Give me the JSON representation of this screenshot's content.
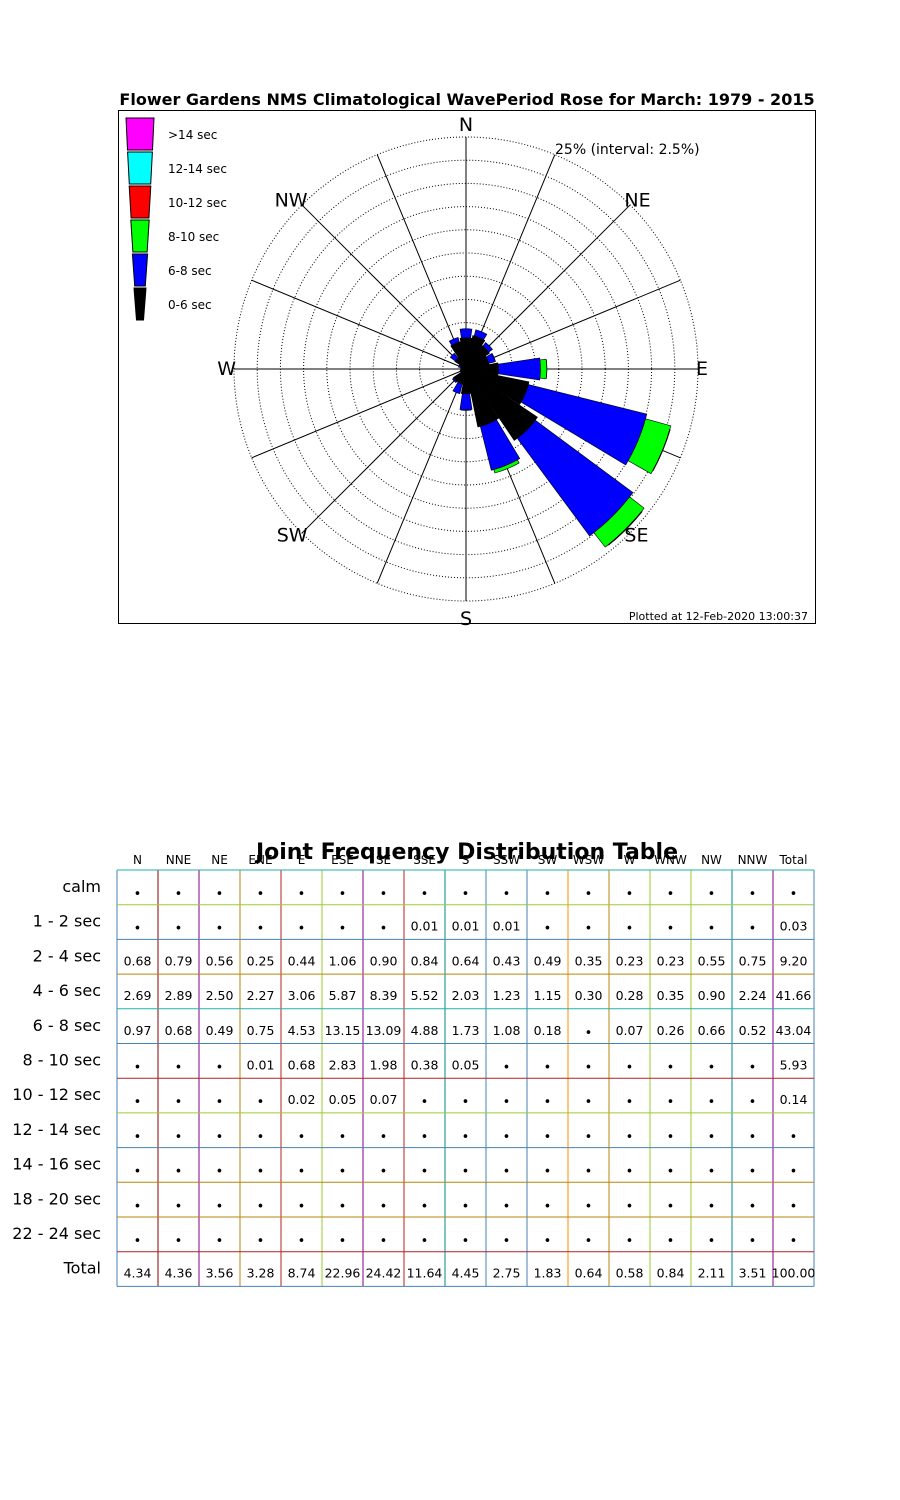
{
  "chart_data": [
    {
      "type": "rose",
      "title": "Flower Gardens NMS Climatological WavePeriod Rose for March: 1979 - 2015",
      "scale_label": "25% (interval: 2.5%)",
      "max_percent": 25,
      "ring_interval": 2.5,
      "footer": "Plotted at 12-Feb-2020 13:00:37",
      "compass_labels": [
        "N",
        "NE",
        "E",
        "SE",
        "S",
        "SW",
        "W",
        "NW"
      ],
      "legend": [
        {
          "label": ">14 sec",
          "color": "#ff00ff"
        },
        {
          "label": "12-14 sec",
          "color": "#00ffff"
        },
        {
          "label": "10-12 sec",
          "color": "#ff0000"
        },
        {
          "label": "8-10 sec",
          "color": "#00ff00"
        },
        {
          "label": "6-8 sec",
          "color": "#0000ff"
        },
        {
          "label": "0-6 sec",
          "color": "#000000"
        }
      ],
      "directions": [
        "N",
        "NNE",
        "NE",
        "ENE",
        "E",
        "ESE",
        "SE",
        "SSE",
        "S",
        "SSW",
        "SW",
        "WSW",
        "W",
        "WNW",
        "NW",
        "NNW"
      ],
      "series": [
        {
          "name": "0-6 sec",
          "values": [
            3.37,
            3.68,
            3.06,
            2.52,
            3.5,
            6.93,
            9.29,
            6.37,
            2.68,
            1.67,
            1.64,
            0.65,
            0.51,
            0.58,
            1.45,
            2.99
          ]
        },
        {
          "name": "6-8 sec",
          "values": [
            0.97,
            0.68,
            0.49,
            0.75,
            4.53,
            13.15,
            13.09,
            4.88,
            1.73,
            1.08,
            0.18,
            0,
            0.07,
            0.26,
            0.66,
            0.52
          ]
        },
        {
          "name": "8-10 sec",
          "values": [
            0,
            0,
            0,
            0.01,
            0.68,
            2.83,
            1.98,
            0.38,
            0.05,
            0,
            0,
            0,
            0,
            0,
            0,
            0
          ]
        },
        {
          "name": "10-12 sec",
          "values": [
            0,
            0,
            0,
            0,
            0.02,
            0.05,
            0.07,
            0,
            0,
            0,
            0,
            0,
            0,
            0,
            0,
            0
          ]
        }
      ]
    },
    {
      "type": "table",
      "title": "Joint Frequency Distribution Table",
      "columns": [
        "N",
        "NNE",
        "NE",
        "ENE",
        "E",
        "ESE",
        "SE",
        "SSE",
        "S",
        "SSW",
        "SW",
        "WSW",
        "W",
        "WNW",
        "NW",
        "NNW",
        "Total"
      ],
      "rows": [
        {
          "label": "calm",
          "cells": [
            "•",
            "•",
            "•",
            "•",
            "•",
            "•",
            "•",
            "•",
            "•",
            "•",
            "•",
            "•",
            "•",
            "•",
            "•",
            "•",
            "•"
          ]
        },
        {
          "label": "1 - 2  sec",
          "cells": [
            "•",
            "•",
            "•",
            "•",
            "•",
            "•",
            "•",
            "0.01",
            "0.01",
            "0.01",
            "•",
            "•",
            "•",
            "•",
            "•",
            "•",
            "0.03"
          ]
        },
        {
          "label": "2 - 4  sec",
          "cells": [
            "0.68",
            "0.79",
            "0.56",
            "0.25",
            "0.44",
            "1.06",
            "0.90",
            "0.84",
            "0.64",
            "0.43",
            "0.49",
            "0.35",
            "0.23",
            "0.23",
            "0.55",
            "0.75",
            "9.20"
          ]
        },
        {
          "label": "4 - 6  sec",
          "cells": [
            "2.69",
            "2.89",
            "2.50",
            "2.27",
            "3.06",
            "5.87",
            "8.39",
            "5.52",
            "2.03",
            "1.23",
            "1.15",
            "0.30",
            "0.28",
            "0.35",
            "0.90",
            "2.24",
            "41.66"
          ]
        },
        {
          "label": "6 - 8  sec",
          "cells": [
            "0.97",
            "0.68",
            "0.49",
            "0.75",
            "4.53",
            "13.15",
            "13.09",
            "4.88",
            "1.73",
            "1.08",
            "0.18",
            "•",
            "0.07",
            "0.26",
            "0.66",
            "0.52",
            "43.04"
          ]
        },
        {
          "label": "8 - 10 sec",
          "cells": [
            "•",
            "•",
            "•",
            "0.01",
            "0.68",
            "2.83",
            "1.98",
            "0.38",
            "0.05",
            "•",
            "•",
            "•",
            "•",
            "•",
            "•",
            "•",
            "5.93"
          ]
        },
        {
          "label": "10 - 12 sec",
          "cells": [
            "•",
            "•",
            "•",
            "•",
            "0.02",
            "0.05",
            "0.07",
            "•",
            "•",
            "•",
            "•",
            "•",
            "•",
            "•",
            "•",
            "•",
            "0.14"
          ]
        },
        {
          "label": "12 - 14 sec",
          "cells": [
            "•",
            "•",
            "•",
            "•",
            "•",
            "•",
            "•",
            "•",
            "•",
            "•",
            "•",
            "•",
            "•",
            "•",
            "•",
            "•",
            "•"
          ]
        },
        {
          "label": "14 - 16 sec",
          "cells": [
            "•",
            "•",
            "•",
            "•",
            "•",
            "•",
            "•",
            "•",
            "•",
            "•",
            "•",
            "•",
            "•",
            "•",
            "•",
            "•",
            "•"
          ]
        },
        {
          "label": "18 - 20 sec",
          "cells": [
            "•",
            "•",
            "•",
            "•",
            "•",
            "•",
            "•",
            "•",
            "•",
            "•",
            "•",
            "•",
            "•",
            "•",
            "•",
            "•",
            "•"
          ]
        },
        {
          "label": "22 - 24 sec",
          "cells": [
            "•",
            "•",
            "•",
            "•",
            "•",
            "•",
            "•",
            "•",
            "•",
            "•",
            "•",
            "•",
            "•",
            "•",
            "•",
            "•",
            "•"
          ]
        },
        {
          "label": "Total",
          "cells": [
            "4.34",
            "4.36",
            "3.56",
            "3.28",
            "8.74",
            "22.96",
            "24.42",
            "11.64",
            "4.45",
            "2.75",
            "1.83",
            "0.64",
            "0.58",
            "0.84",
            "2.11",
            "3.51",
            "100.00"
          ]
        }
      ],
      "column_line_colors": [
        "#8b0000",
        "#800080",
        "#b8860b",
        "#b22222",
        "#9acd32",
        "#800080",
        "#b22222",
        "#008b8b",
        "#4682b4",
        "#4682b4",
        "#ff8c00",
        "#b8860b",
        "#9acd32",
        "#9acd32",
        "#008b8b",
        "#800080",
        "#4682b4"
      ],
      "row_line_colors": [
        "#20b2aa",
        "#9acd32",
        "#4682b4",
        "#b8860b",
        "#20b2aa",
        "#4682b4",
        "#b22222",
        "#9acd32",
        "#4682b4",
        "#b8860b",
        "#b8860b",
        "#b22222",
        "#4682b4"
      ]
    }
  ]
}
